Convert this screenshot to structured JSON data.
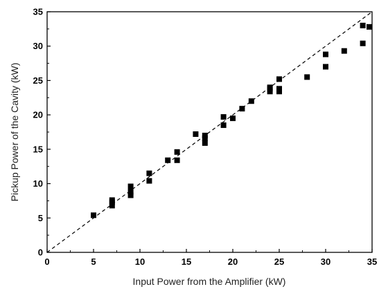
{
  "chart_data": {
    "type": "scatter",
    "title": "",
    "xlabel": "Input Power from the Amplifier (kW)",
    "ylabel": "Pickup Power of the Cavity (kW)",
    "xlim": [
      0,
      35
    ],
    "ylim": [
      0,
      35
    ],
    "xticks": [
      0,
      5,
      10,
      15,
      20,
      25,
      30,
      35
    ],
    "yticks": [
      0,
      5,
      10,
      15,
      20,
      25,
      30,
      35
    ],
    "xtick_labels": [
      "0",
      "5",
      "10",
      "15",
      "20",
      "25",
      "30",
      "35"
    ],
    "ytick_labels": [
      "0",
      "5",
      "10",
      "15",
      "20",
      "25",
      "30",
      "35"
    ],
    "grid": false,
    "marker": "square",
    "marker_color": "#000000",
    "reference_line": {
      "style": "dashed",
      "color": "#000000",
      "points": [
        [
          0,
          0
        ],
        [
          35,
          35
        ]
      ]
    },
    "series": [
      {
        "x": [
          5,
          7,
          7,
          7,
          9,
          9,
          9,
          11,
          11,
          13,
          14,
          14,
          16,
          17,
          17,
          17,
          19,
          19,
          20,
          21,
          22,
          24,
          24,
          24,
          25,
          25,
          25,
          28,
          30,
          30,
          32,
          34,
          34,
          35
        ],
        "y": [
          5.4,
          6.8,
          7.3,
          7.6,
          8.3,
          8.8,
          9.6,
          10.4,
          11.5,
          13.4,
          13.4,
          14.6,
          17.2,
          15.9,
          16.6,
          17.0,
          18.5,
          19.7,
          19.5,
          20.9,
          22.0,
          23.4,
          23.8,
          24.0,
          23.4,
          23.8,
          25.2,
          25.5,
          27.0,
          28.8,
          29.3,
          30.4,
          33.0,
          32.8
        ]
      }
    ]
  }
}
